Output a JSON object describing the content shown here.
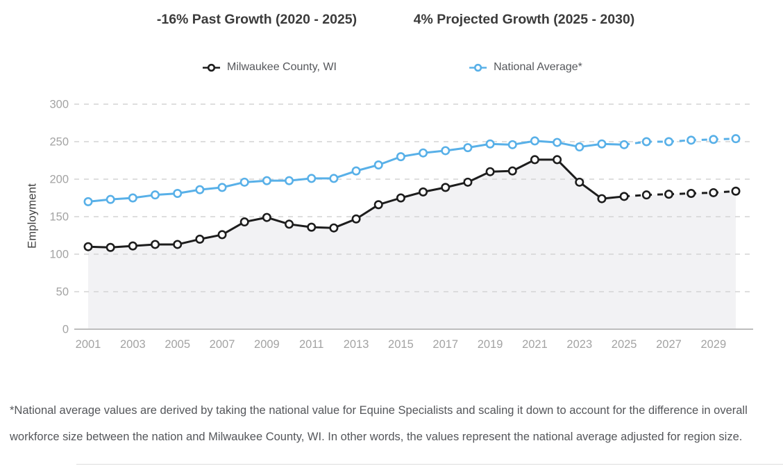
{
  "header": {
    "past_growth": "-16% Past Growth (2020 - 2025)",
    "projected_growth": "4% Projected Growth (2025 - 2030)"
  },
  "legend": [
    {
      "label": "Milwaukee County, WI",
      "color": "#1d1d1d"
    },
    {
      "label": "National Average*",
      "color": "#58b0e8"
    }
  ],
  "footnote": "*National average values are derived by taking the national value for Equine Specialists and scaling it down to account for the difference in overall workforce size between the nation and Milwaukee County, WI. In other words, the values represent the national average adjusted for region size.",
  "chart_data": {
    "type": "line",
    "title": "",
    "xlabel": "",
    "ylabel": "Employment",
    "x": [
      2001,
      2002,
      2003,
      2004,
      2005,
      2006,
      2007,
      2008,
      2009,
      2010,
      2011,
      2012,
      2013,
      2014,
      2015,
      2016,
      2017,
      2018,
      2019,
      2020,
      2021,
      2022,
      2023,
      2024,
      2025,
      2026,
      2027,
      2028,
      2029,
      2030
    ],
    "series": [
      {
        "name": "Milwaukee County, WI",
        "color": "#1d1d1d",
        "area": true,
        "values": [
          110,
          109,
          111,
          113,
          113,
          120,
          126,
          143,
          149,
          140,
          136,
          135,
          147,
          166,
          175,
          183,
          189,
          196,
          210,
          211,
          226,
          226,
          196,
          174,
          177,
          179,
          180,
          181,
          182,
          184
        ]
      },
      {
        "name": "National Average*",
        "color": "#58b0e8",
        "area": false,
        "values": [
          170,
          173,
          175,
          179,
          181,
          186,
          189,
          196,
          198,
          198,
          201,
          201,
          211,
          219,
          230,
          235,
          238,
          242,
          247,
          246,
          251,
          249,
          243,
          247,
          246,
          250,
          250,
          252,
          253,
          254
        ]
      }
    ],
    "projection_start_year": 2025,
    "yticks": [
      0,
      50,
      100,
      150,
      200,
      250,
      300
    ],
    "xticks": [
      2001,
      2003,
      2005,
      2007,
      2009,
      2011,
      2013,
      2015,
      2017,
      2019,
      2021,
      2023,
      2025,
      2027,
      2029
    ],
    "ylim": [
      0,
      300
    ],
    "grid": "horizontal-dashed",
    "legend_position": "top",
    "colors": {
      "grid": "#d3d3d3",
      "axis_line": "#bdbdbd",
      "tick_text": "#a3a3a3",
      "area_fill": "#f2f2f4",
      "marker_fill": "#ffffff"
    }
  }
}
